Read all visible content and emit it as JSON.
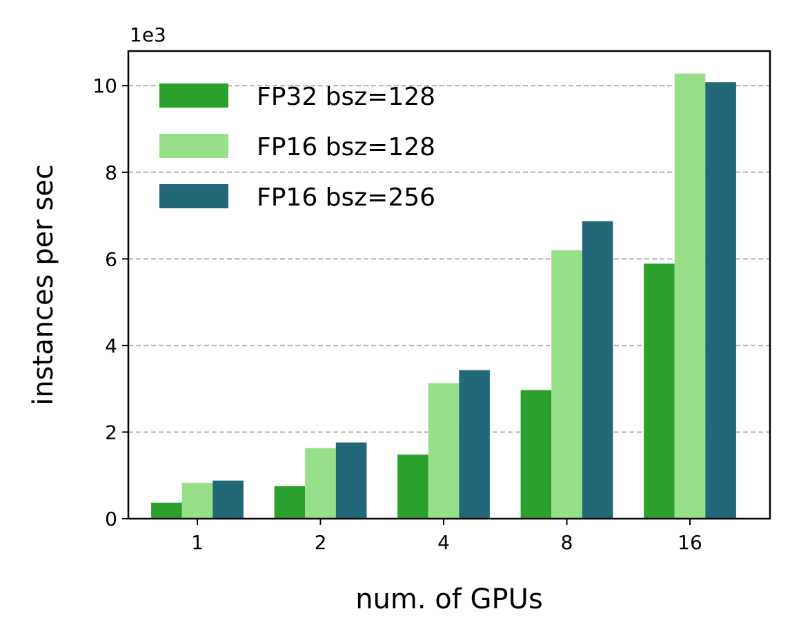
{
  "chart_data": {
    "type": "bar",
    "categories": [
      "1",
      "2",
      "4",
      "8",
      "16"
    ],
    "series": [
      {
        "name": "FP32 bsz=128",
        "color": "#2ca02c",
        "values": [
          0.37,
          0.75,
          1.48,
          2.97,
          5.89
        ]
      },
      {
        "name": "FP16 bsz=128",
        "color": "#98df8a",
        "values": [
          0.83,
          1.63,
          3.13,
          6.2,
          10.28
        ]
      },
      {
        "name": "FP16 bsz=256",
        "color": "#236878",
        "values": [
          0.88,
          1.76,
          3.43,
          6.87,
          10.08
        ]
      }
    ],
    "title": "",
    "xlabel": "num. of GPUs",
    "ylabel": "instances per sec",
    "y_scale_label": "1e3",
    "ylim": [
      0,
      10.8
    ],
    "yticks": [
      0,
      2,
      4,
      6,
      8,
      10
    ],
    "grid": "y dashed",
    "legend_position": "top-left"
  }
}
